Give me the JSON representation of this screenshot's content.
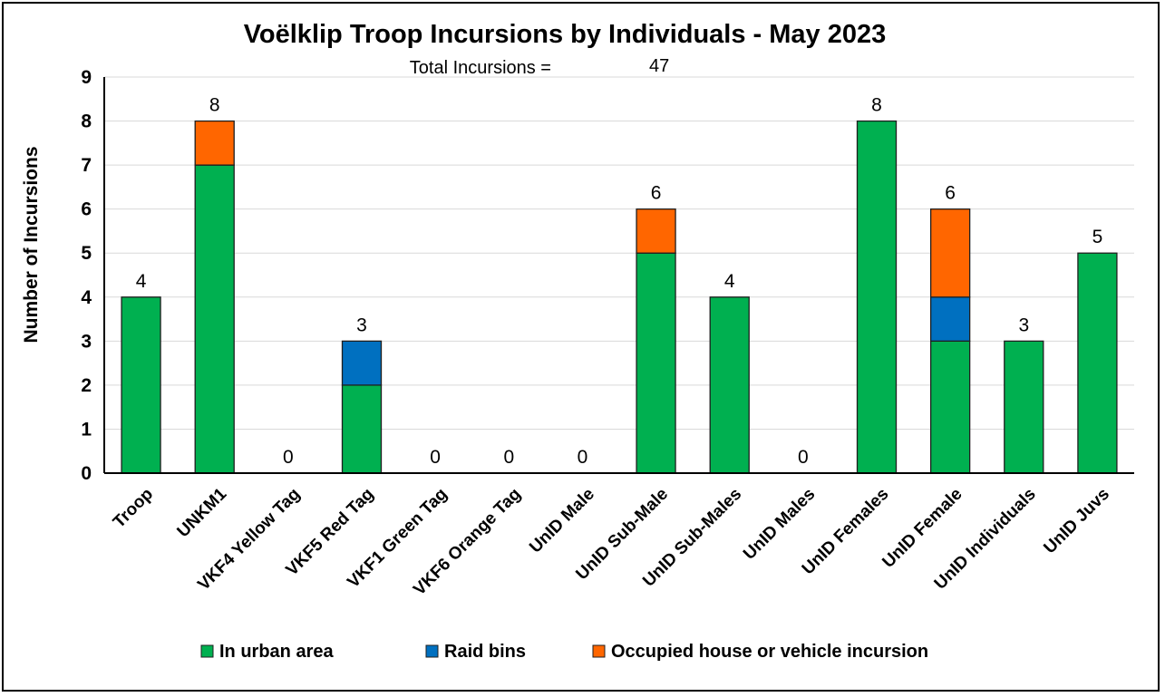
{
  "chart_data": {
    "type": "bar",
    "stacked": true,
    "title": "Voëlklip Troop Incursions by Individuals - May 2023",
    "subtitle_label": "Total Incursions =",
    "subtitle_value": "47",
    "ylabel": "Number of Incursions",
    "xlabel": "",
    "ylim": [
      0,
      9
    ],
    "yticks": [
      0,
      1,
      2,
      3,
      4,
      5,
      6,
      7,
      8,
      9
    ],
    "grid": true,
    "legend_position": "bottom",
    "categories": [
      "Troop",
      "UNKM1",
      "VKF4 Yellow Tag",
      "VKF5 Red Tag",
      "VKF1 Green Tag",
      "VKF6 Orange Tag",
      "UnID Male",
      "UnID Sub-Male",
      "UnID Sub-Males",
      "UnID Males",
      "UnID Females",
      "UnID Female",
      "UnID Individuals",
      "UnID Juvs"
    ],
    "series": [
      {
        "name": "In urban area",
        "color": "#00b050",
        "values": [
          4,
          7,
          0,
          2,
          0,
          0,
          0,
          5,
          4,
          0,
          8,
          3,
          3,
          5
        ]
      },
      {
        "name": "Raid bins",
        "color": "#0070c0",
        "values": [
          0,
          0,
          0,
          1,
          0,
          0,
          0,
          0,
          0,
          0,
          0,
          1,
          0,
          0
        ]
      },
      {
        "name": "Occupied house or vehicle incursion",
        "color": "#ff6600",
        "values": [
          0,
          1,
          0,
          0,
          0,
          0,
          0,
          1,
          0,
          0,
          0,
          2,
          0,
          0
        ]
      }
    ],
    "totals": [
      4,
      8,
      0,
      3,
      0,
      0,
      0,
      6,
      4,
      0,
      8,
      6,
      3,
      5
    ]
  }
}
